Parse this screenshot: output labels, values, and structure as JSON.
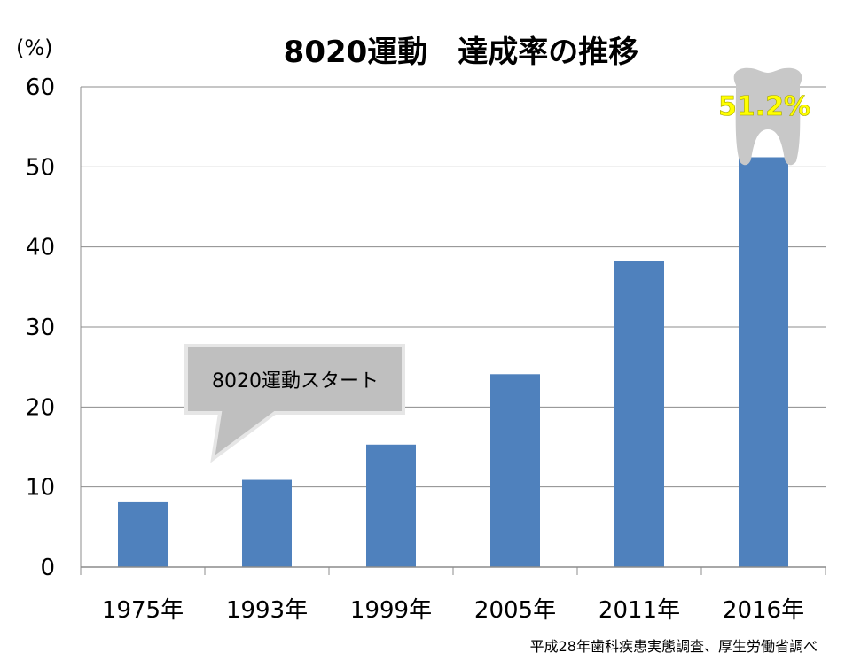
{
  "chart_data": {
    "type": "bar",
    "title": "8020運動　達成率の推移",
    "ylabel": "(%)",
    "xlabel": "",
    "categories": [
      "1975年",
      "1993年",
      "1999年",
      "2005年",
      "2011年",
      "2016年"
    ],
    "values": [
      8.2,
      10.9,
      15.3,
      24.1,
      38.3,
      51.2
    ],
    "ylim": [
      0,
      60
    ],
    "yticks": [
      0,
      10,
      20,
      30,
      40,
      50,
      60
    ],
    "grid": true,
    "bar_color": "#4f81bd",
    "highlight_label": "51.2%",
    "highlight_label_color": "#ffff00",
    "highlight_icon": "tooth-icon",
    "callout": {
      "text": "8020運動スタート",
      "color": "#bfbfbf"
    },
    "source": "平成28年歯科疾患実態調査、厚生労働省調べ"
  }
}
